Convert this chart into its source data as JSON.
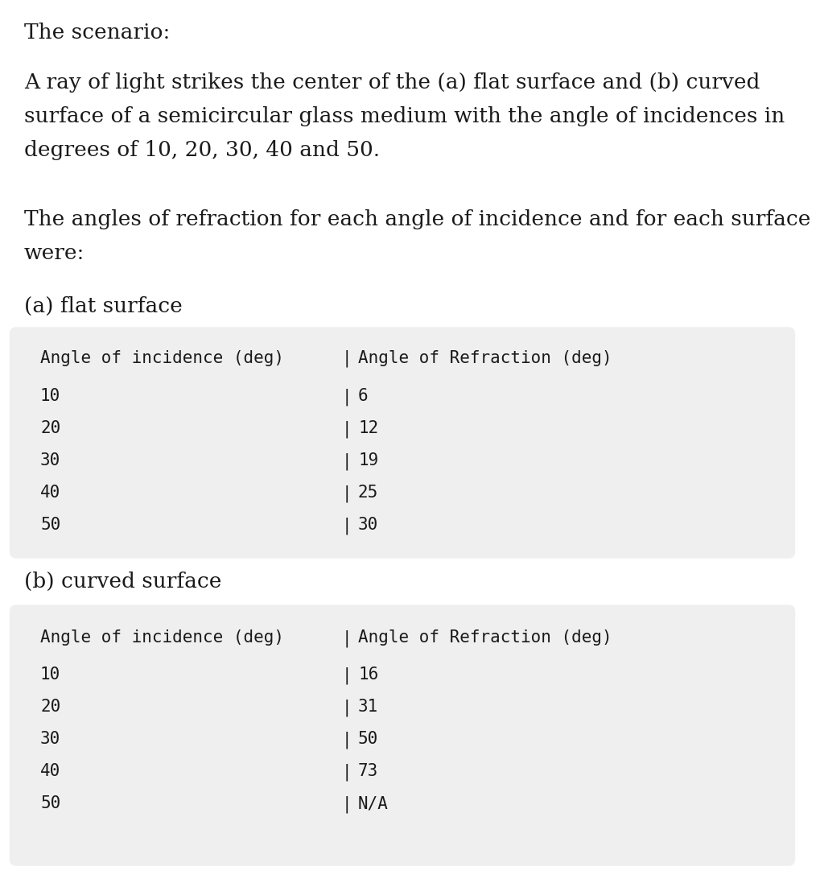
{
  "title_line1": "The scenario:",
  "paragraph1_lines": [
    "A ray of light strikes the center of the (a) flat surface and (b) curved",
    "surface of a semicircular glass medium with the angle of incidences in",
    "degrees of 10, 20, 30, 40 and 50."
  ],
  "paragraph2_lines": [
    "The angles of refraction for each angle of incidence and for each surface",
    "were:"
  ],
  "section_a_label": "(a) flat surface",
  "section_b_label": "(b) curved surface",
  "table_header_col1": "Angle of incidence (deg)",
  "table_header_col2": "Angle of Refraction (deg)",
  "table_a_col1": [
    "10",
    "20",
    "30",
    "40",
    "50"
  ],
  "table_a_col2": [
    "6",
    "12",
    "19",
    "25",
    "30"
  ],
  "table_b_col1": [
    "10",
    "20",
    "30",
    "40",
    "50"
  ],
  "table_b_col2": [
    "16",
    "31",
    "50",
    "73",
    "N/A"
  ],
  "bg_color": "#ffffff",
  "table_bg_color": "#efefef",
  "text_color": "#1a1a1a",
  "mono_font": "DejaVu Sans Mono",
  "serif_font": "DejaVu Serif",
  "body_fontsize": 19,
  "table_fontsize": 15,
  "section_fontsize": 19
}
